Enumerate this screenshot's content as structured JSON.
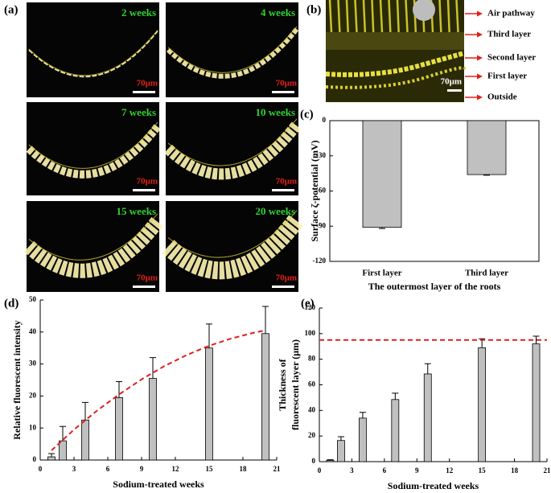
{
  "panels": {
    "a": {
      "label": "(a)",
      "images": [
        {
          "caption": "2 weeks",
          "scale": "70μm"
        },
        {
          "caption": "4 weeks",
          "scale": "70μm"
        },
        {
          "caption": "7 weeks",
          "scale": "70μm"
        },
        {
          "caption": "10 weeks",
          "scale": "70μm"
        },
        {
          "caption": "15 weeks",
          "scale": "70μm"
        },
        {
          "caption": "20 weeks",
          "scale": "70μm"
        }
      ]
    },
    "b": {
      "label": "(b)",
      "scale": "70μm",
      "annotations": [
        "Air pathway",
        "Third layer",
        "Second layer",
        "First layer",
        "Outside"
      ]
    }
  },
  "chart_data": [
    {
      "type": "bar",
      "panel_label": "(c)",
      "ylabel": [
        "Surface ζ-potential (mV)"
      ],
      "xlabel": "The outermost layer of the roots",
      "categories": [
        "First  layer",
        "Third layer"
      ],
      "values": [
        -91,
        -46
      ],
      "errors": [
        1,
        0.5
      ],
      "color": "#c0c0c0",
      "ylim": [
        -120,
        0
      ],
      "yticks": [
        0,
        -30,
        -60,
        -90,
        -120
      ],
      "frame": "box"
    },
    {
      "type": "bar",
      "panel_label": "(d)",
      "ylabel": [
        "Relative fluorescent intensity"
      ],
      "xlabel": "Sodium-treated weeks",
      "x": [
        1,
        2,
        4,
        7,
        10,
        15,
        20
      ],
      "values": [
        1,
        6,
        12.5,
        19.5,
        25.5,
        35,
        39.5
      ],
      "errors": [
        1,
        4.5,
        5.5,
        5,
        6.5,
        7.5,
        8.5
      ],
      "color": "#c0c0c0",
      "xlim": [
        0,
        21
      ],
      "xticks": [
        0,
        3,
        6,
        9,
        12,
        15,
        18,
        21
      ],
      "ylim": [
        0,
        50
      ],
      "yticks": [
        0,
        10,
        20,
        30,
        40,
        50
      ],
      "fit": {
        "x": [
          1,
          3,
          5,
          7,
          9,
          11,
          13,
          15,
          17,
          19,
          20
        ],
        "values": [
          3,
          9.5,
          15.3,
          20.5,
          25.2,
          29.3,
          32.8,
          35.7,
          38,
          39.8,
          40.5
        ],
        "color": "#e02020"
      },
      "frame": "axes"
    },
    {
      "type": "bar",
      "panel_label": "(e)",
      "ylabel": [
        "Thickness of",
        "fluorescent layer (μm)"
      ],
      "xlabel": "Sodium-treated weeks",
      "x": [
        1,
        2,
        4,
        7,
        10,
        15,
        20
      ],
      "values": [
        1,
        16.5,
        34,
        48.5,
        68.5,
        89,
        92
      ],
      "errors": [
        0.5,
        3,
        4.5,
        5,
        8,
        7,
        6
      ],
      "color": "#c0c0c0",
      "xlim": [
        0,
        21
      ],
      "xticks": [
        0,
        3,
        6,
        9,
        12,
        15,
        18,
        21
      ],
      "ylim": [
        0,
        120
      ],
      "yticks": [
        0,
        20,
        40,
        60,
        80,
        100,
        120
      ],
      "reference_line": 95,
      "reference_color": "#e02020",
      "frame": "axes"
    }
  ]
}
